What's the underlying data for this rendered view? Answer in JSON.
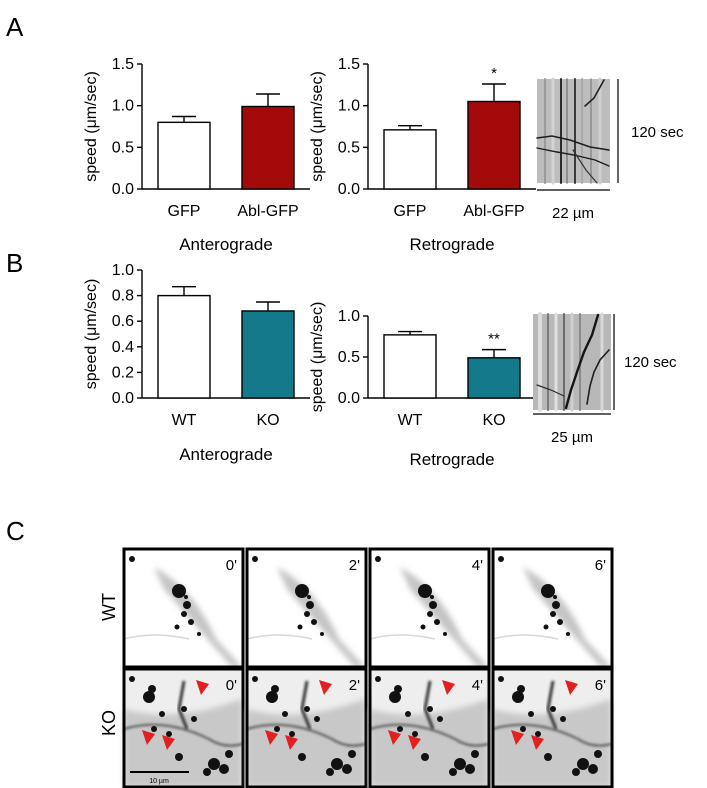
{
  "panel_letters": [
    "A",
    "B",
    "C"
  ],
  "colors": {
    "control": "#ffffff",
    "abl": "#a30a0a",
    "ko": "#137a8c",
    "arrow": "#e31f1f"
  },
  "chart_data": [
    {
      "panel": "A",
      "type": "bar",
      "title": "Anterograde",
      "ylabel": "speed (μm/sec)",
      "ylim": [
        0,
        1.5
      ],
      "yticks": [
        "0.0",
        "0.5",
        "1.0",
        "1.5"
      ],
      "categories": [
        "GFP",
        "Abl-GFP"
      ],
      "values": [
        0.8,
        0.99
      ],
      "errors": [
        0.07,
        0.15
      ],
      "bar_colors": [
        "#ffffff",
        "#a30a0a"
      ],
      "annotations": [
        "",
        ""
      ]
    },
    {
      "panel": "A",
      "type": "bar",
      "title": "Retrograde",
      "ylabel": "speed (μm/sec)",
      "ylim": [
        0,
        1.5
      ],
      "yticks": [
        "0.0",
        "0.5",
        "1.0",
        "1.5"
      ],
      "categories": [
        "GFP",
        "Abl-GFP"
      ],
      "values": [
        0.71,
        1.05
      ],
      "errors": [
        0.05,
        0.21
      ],
      "bar_colors": [
        "#ffffff",
        "#a30a0a"
      ],
      "annotations": [
        "",
        "*"
      ]
    },
    {
      "panel": "B",
      "type": "bar",
      "title": "Anterograde",
      "ylabel": "speed (μm/sec)",
      "ylim": [
        0,
        1.0
      ],
      "yticks": [
        "0.0",
        "0.2",
        "0.4",
        "0.6",
        "0.8",
        "1.0"
      ],
      "categories": [
        "WT",
        "KO"
      ],
      "values": [
        0.8,
        0.68
      ],
      "errors": [
        0.07,
        0.07
      ],
      "bar_colors": [
        "#ffffff",
        "#137a8c"
      ],
      "annotations": [
        "",
        ""
      ]
    },
    {
      "panel": "B",
      "type": "bar",
      "title": "Retrograde",
      "ylabel": "speed (μm/sec)",
      "ylim": [
        0,
        1.0
      ],
      "yticks": [
        "0.0",
        "0.5",
        "1.0"
      ],
      "categories": [
        "WT",
        "KO"
      ],
      "values": [
        0.77,
        0.49
      ],
      "errors": [
        0.04,
        0.1
      ],
      "bar_colors": [
        "#ffffff",
        "#137a8c"
      ],
      "annotations": [
        "",
        "**"
      ]
    }
  ],
  "kymographs": [
    {
      "panel": "A",
      "time_label": "120 sec",
      "scale_label": "22 µm"
    },
    {
      "panel": "B",
      "time_label": "120 sec",
      "scale_label": "25 µm"
    }
  ],
  "timelapse": {
    "rows": [
      "WT",
      "KO"
    ],
    "time_labels": [
      "0'",
      "2'",
      "4'",
      "6'"
    ],
    "scale_label": "10 µm"
  }
}
